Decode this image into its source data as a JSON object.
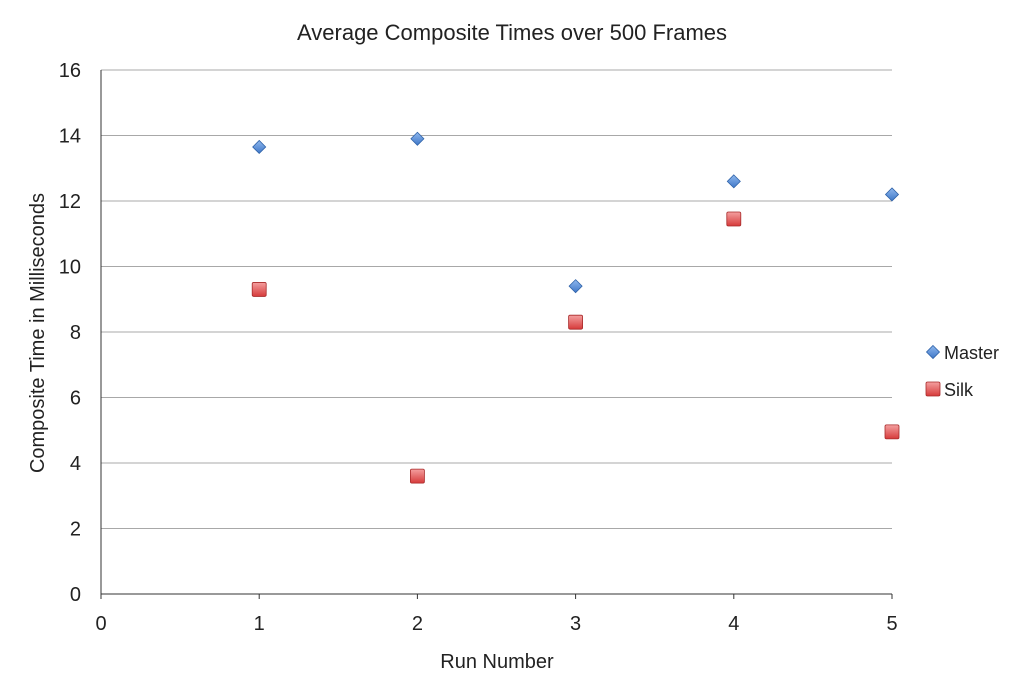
{
  "chart_data": {
    "type": "scatter",
    "title": "Average Composite Times over 500 Frames",
    "xlabel": "Run Number",
    "ylabel": "Composite Time in Milliseconds",
    "xlim": [
      0,
      5
    ],
    "ylim": [
      0,
      16
    ],
    "xticks": [
      "0",
      "1",
      "2",
      "3",
      "4",
      "5"
    ],
    "yticks": [
      "0",
      "2",
      "4",
      "6",
      "8",
      "10",
      "12",
      "14",
      "16"
    ],
    "grid": "horizontal",
    "legend_position": "right",
    "series": [
      {
        "name": "Master",
        "marker": "diamond",
        "color": "#4a86d4",
        "x": [
          1,
          2,
          3,
          4,
          5
        ],
        "y": [
          13.65,
          13.9,
          9.4,
          12.6,
          12.2
        ]
      },
      {
        "name": "Silk",
        "marker": "square",
        "color": "#e04848",
        "x": [
          1,
          2,
          3,
          4,
          5
        ],
        "y": [
          9.3,
          3.6,
          8.3,
          11.45,
          4.95
        ]
      }
    ]
  }
}
